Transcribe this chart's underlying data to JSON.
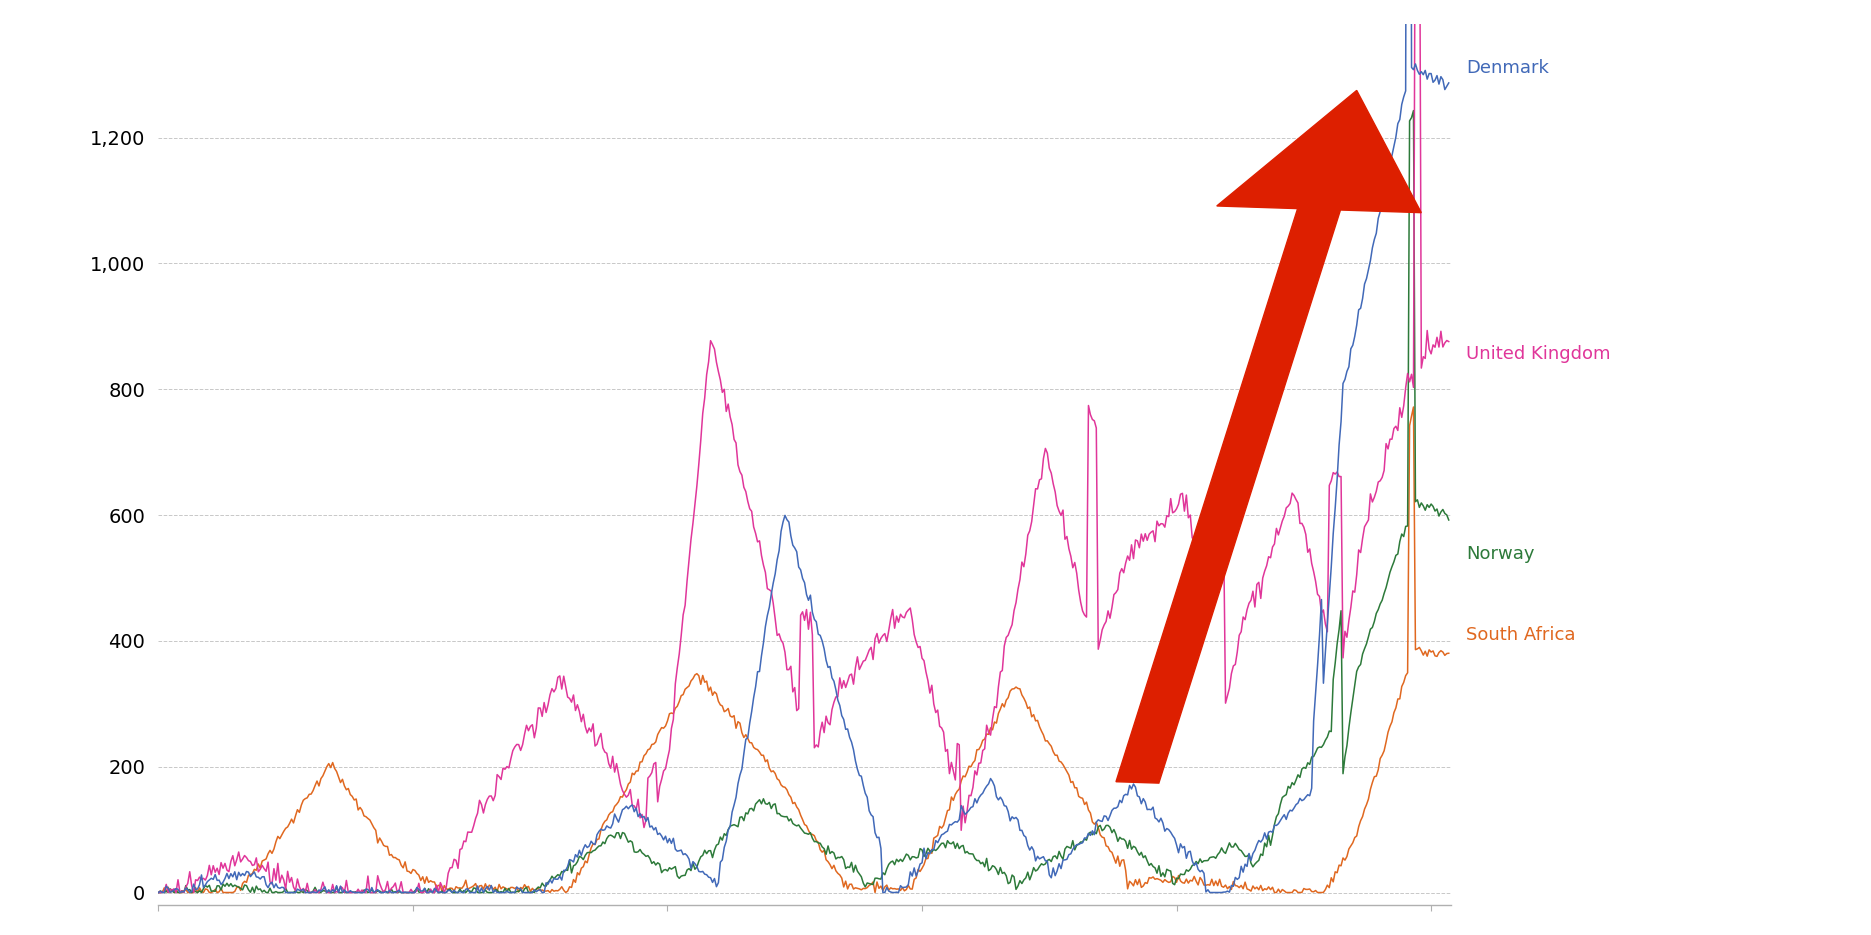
{
  "background_color": "#ffffff",
  "grid_color": "#c8c8c8",
  "colors": {
    "Denmark": "#4169b8",
    "United Kingdom": "#e0369a",
    "Norway": "#2d7a3a",
    "South Africa": "#e06820"
  },
  "label_colors": {
    "Denmark": "#4169b8",
    "United Kingdom": "#e0369a",
    "Norway": "#2d7a3a",
    "South Africa": "#e06820"
  },
  "yticks": [
    0,
    200,
    400,
    600,
    800,
    1000,
    1200
  ],
  "ylim": [
    -20,
    1380
  ],
  "xlim": [
    0,
    660
  ],
  "arrow_color": "#dd1f00",
  "n_points": 660
}
